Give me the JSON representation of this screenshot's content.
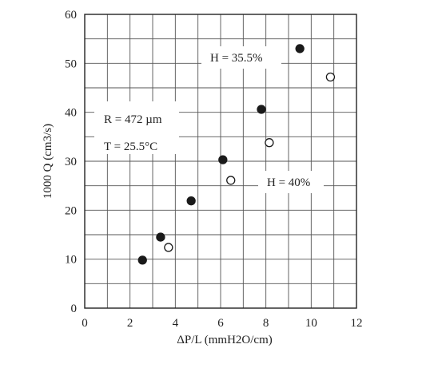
{
  "chart_data": {
    "type": "scatter",
    "xlabel": "ΔP/L (mmH2O/cm)",
    "ylabel": "1000 Q (cm3/s)",
    "xlim": [
      0,
      12
    ],
    "ylim": [
      0,
      60
    ],
    "x_ticks": [
      0,
      2,
      4,
      6,
      8,
      10,
      12
    ],
    "y_ticks": [
      0,
      10,
      20,
      30,
      40,
      50,
      60
    ],
    "x_minor_step": 1,
    "y_minor_step": 5,
    "grid": true,
    "series": [
      {
        "name": "H = 35.5%",
        "marker": "filled-circle",
        "points": [
          {
            "x": 2.55,
            "y": 9.8
          },
          {
            "x": 3.35,
            "y": 14.5
          },
          {
            "x": 4.7,
            "y": 21.9
          },
          {
            "x": 6.1,
            "y": 30.3
          },
          {
            "x": 7.8,
            "y": 40.6
          },
          {
            "x": 9.5,
            "y": 53.0
          }
        ]
      },
      {
        "name": "H = 40%",
        "marker": "open-circle",
        "points": [
          {
            "x": 3.7,
            "y": 12.4
          },
          {
            "x": 6.45,
            "y": 26.1
          },
          {
            "x": 8.15,
            "y": 33.8
          },
          {
            "x": 10.85,
            "y": 47.2
          }
        ]
      }
    ],
    "annotations": {
      "radius": "R = 472 µm",
      "temperature": "T = 25.5°C",
      "series_a": "H = 35.5%",
      "series_b": "H = 40%"
    }
  }
}
